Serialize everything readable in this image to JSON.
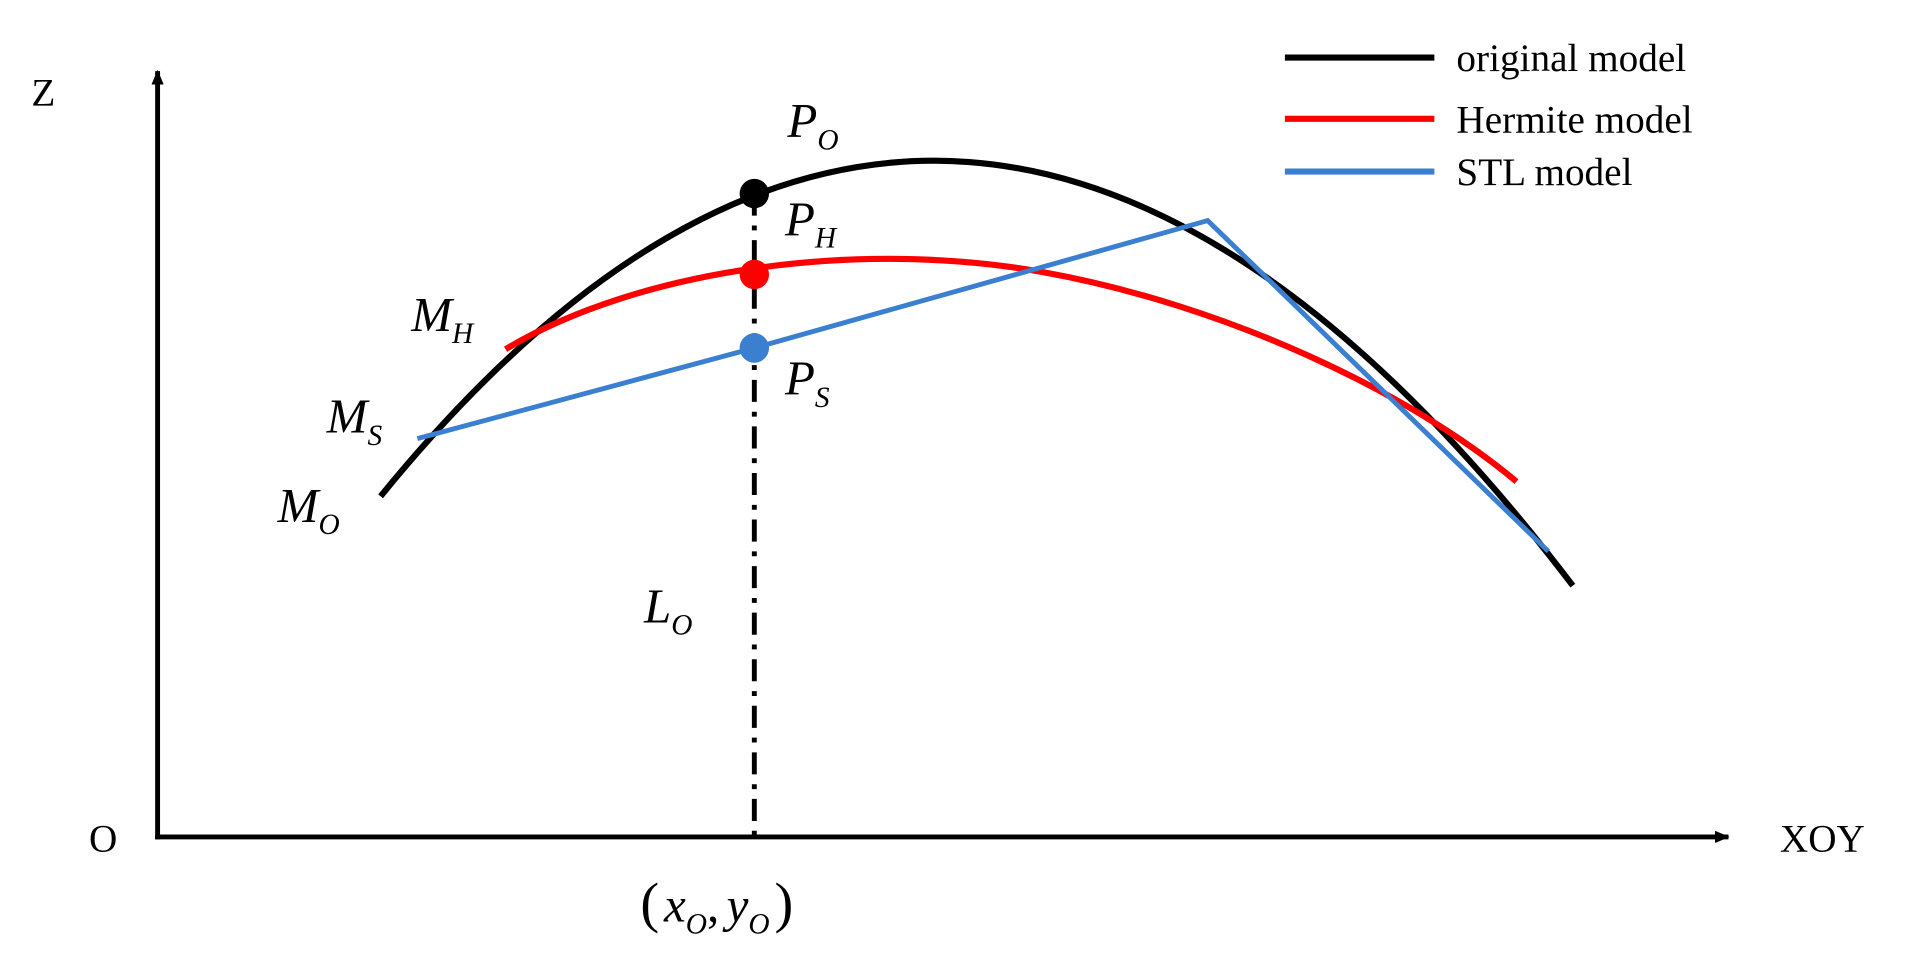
{
  "axes": {
    "z_label": "Z",
    "origin_label": "O",
    "x_label": "XOY"
  },
  "legend": [
    {
      "label": "original model",
      "color": "#000000"
    },
    {
      "label": "Hermite model",
      "color": "#ff0000"
    },
    {
      "label": "STL model",
      "color": "#3a7fd0"
    }
  ],
  "points": [
    {
      "main": "P",
      "sub": "O"
    },
    {
      "main": "P",
      "sub": "H"
    },
    {
      "main": "P",
      "sub": "S"
    },
    {
      "main": "M",
      "sub": "H"
    },
    {
      "main": "M",
      "sub": "S"
    },
    {
      "main": "M",
      "sub": "O"
    },
    {
      "main": "L",
      "sub": "O"
    }
  ],
  "coordinate": {
    "open": "(",
    "x": "x",
    "x_sub": "O",
    "sep": ",",
    "y": "y",
    "y_sub": "O",
    "close": ")"
  }
}
